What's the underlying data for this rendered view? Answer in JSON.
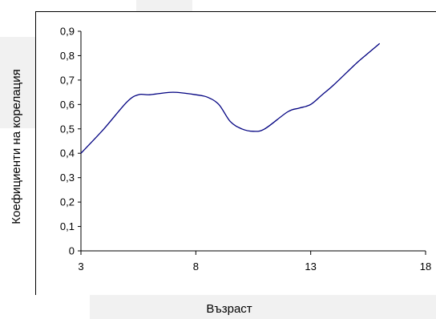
{
  "chart_data": {
    "type": "line",
    "title": "",
    "xlabel": "Възраст",
    "ylabel": "Коефициенти на корелация",
    "xlim": [
      3,
      18
    ],
    "ylim": [
      0,
      0.9
    ],
    "x_ticks": [
      3,
      8,
      13,
      18
    ],
    "x_tick_labels": [
      "3",
      "8",
      "13",
      "18"
    ],
    "y_ticks": [
      0,
      0.1,
      0.2,
      0.3,
      0.4,
      0.5,
      0.6,
      0.7,
      0.8,
      0.9
    ],
    "y_tick_labels": [
      "0",
      "0,1",
      "0,2",
      "0,3",
      "0,4",
      "0,5",
      "0,6",
      "0,7",
      "0,8",
      "0,9"
    ],
    "grid": false,
    "legend": "none",
    "line_color": "#000080",
    "series": [
      {
        "x": [
          3,
          4,
          5,
          5.5,
          6,
          7,
          8,
          8.5,
          9,
          9.5,
          10,
          10.5,
          11,
          12,
          12.5,
          13,
          13.5,
          14,
          15,
          15.5,
          16
        ],
        "y": [
          0.4,
          0.5,
          0.61,
          0.64,
          0.64,
          0.65,
          0.64,
          0.63,
          0.6,
          0.53,
          0.5,
          0.49,
          0.5,
          0.57,
          0.585,
          0.6,
          0.64,
          0.68,
          0.77,
          0.81,
          0.85
        ]
      }
    ]
  }
}
